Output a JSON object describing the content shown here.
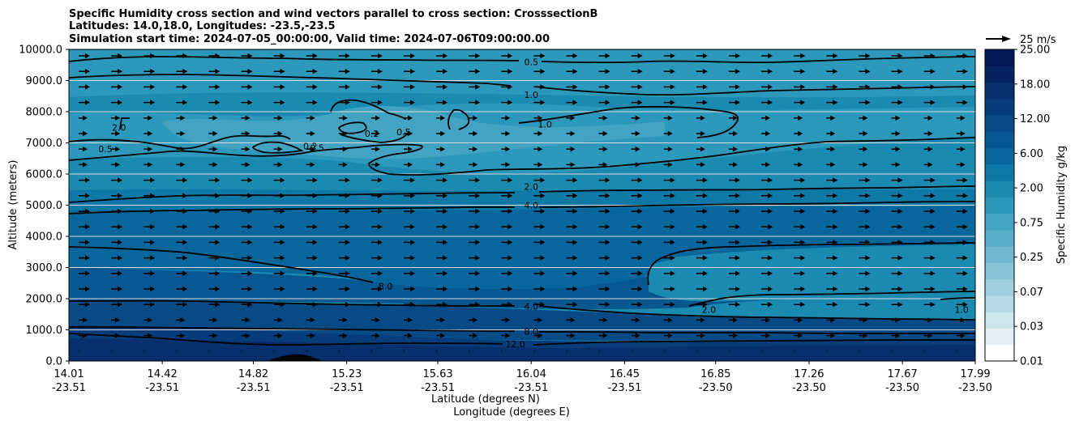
{
  "chart_data": {
    "type": "contour",
    "title_lines": [
      "Specific Humidity cross section and wind vectors parallel to cross section: CrosssectionB",
      "Latitudes: 14.0,18.0, Longitudes: -23.5,-23.5",
      "Simulation start time: 2024-07-05_00:00:00, Valid time: 2024-07-06T09:00:00.00"
    ],
    "ylabel": "Altitude (meters)",
    "xlabel_lat": "Latitude (degrees N)",
    "xlabel_lon": "Longitude (degrees E)",
    "ylim": [
      0,
      10000
    ],
    "yticks": [
      "0.0",
      "1000.0",
      "2000.0",
      "3000.0",
      "4000.0",
      "5000.0",
      "6000.0",
      "7000.0",
      "8000.0",
      "9000.0",
      "10000.0"
    ],
    "xticks": [
      {
        "lat": "14.01",
        "lon": "-23.51"
      },
      {
        "lat": "14.42",
        "lon": "-23.51"
      },
      {
        "lat": "14.82",
        "lon": "-23.51"
      },
      {
        "lat": "15.23",
        "lon": "-23.51"
      },
      {
        "lat": "15.63",
        "lon": "-23.51"
      },
      {
        "lat": "16.04",
        "lon": "-23.51"
      },
      {
        "lat": "16.45",
        "lon": "-23.51"
      },
      {
        "lat": "16.85",
        "lon": "-23.50"
      },
      {
        "lat": "17.26",
        "lon": "-23.50"
      },
      {
        "lat": "17.67",
        "lon": "-23.50"
      },
      {
        "lat": "17.99",
        "lon": "-23.50"
      }
    ],
    "colorbar": {
      "label": "Specific Humidity g/kg",
      "ticks": [
        "0.01",
        "0.03",
        "0.07",
        "0.25",
        "0.75",
        "2.00",
        "6.00",
        "12.00",
        "18.00",
        "25.00"
      ],
      "levels": [
        0.01,
        0.02,
        0.03,
        0.05,
        0.07,
        0.1,
        0.25,
        0.5,
        0.75,
        1,
        2,
        4,
        6,
        8,
        12,
        15,
        18,
        20,
        25
      ],
      "colors": [
        "#ffffff",
        "#e4f0f4",
        "#cde5ec",
        "#b6dae5",
        "#9fcfde",
        "#88c4d7",
        "#71b9d0",
        "#5aaec9",
        "#43a3c2",
        "#2c98bb",
        "#1b8ab0",
        "#0e78a6",
        "#07669b",
        "#075790",
        "#074a85",
        "#063c79",
        "#062f6d",
        "#052361",
        "#041754"
      ]
    },
    "quiver_key": {
      "label": "25 m/s",
      "speed": 25
    },
    "contour_labels": [
      {
        "text": "0.5",
        "lat": 16.04,
        "alt": 9600
      },
      {
        "text": "1.0",
        "lat": 16.04,
        "alt": 8550
      },
      {
        "text": "2.0",
        "lat": 16.04,
        "alt": 5600
      },
      {
        "text": "4.0",
        "lat": 16.04,
        "alt": 5000
      },
      {
        "text": "8.0",
        "lat": 15.4,
        "alt": 2400
      },
      {
        "text": "4.0",
        "lat": 16.04,
        "alt": 1750
      },
      {
        "text": "8.0",
        "lat": 16.04,
        "alt": 950
      },
      {
        "text": "12.0",
        "lat": 15.97,
        "alt": 550
      },
      {
        "text": "2.0",
        "lat": 14.23,
        "alt": 7500
      },
      {
        "text": "0.5",
        "lat": 14.17,
        "alt": 6800
      },
      {
        "text": "0.2",
        "lat": 15.34,
        "alt": 7300
      },
      {
        "text": "0.5",
        "lat": 15.48,
        "alt": 7350
      },
      {
        "text": "0.2",
        "lat": 15.07,
        "alt": 6900
      },
      {
        "text": "0.5",
        "lat": 15.1,
        "alt": 6850
      },
      {
        "text": "1.0",
        "lat": 16.1,
        "alt": 7600
      },
      {
        "text": "2.0",
        "lat": 16.82,
        "alt": 1650
      },
      {
        "text": "1.0",
        "lat": 17.93,
        "alt": 1650
      }
    ]
  }
}
